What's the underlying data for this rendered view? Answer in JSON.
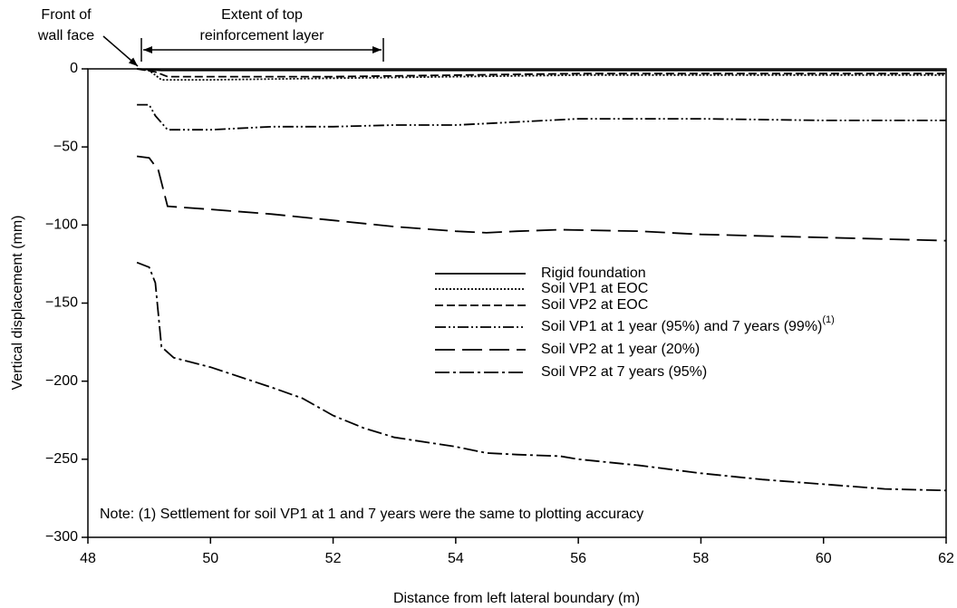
{
  "chart_data": {
    "type": "line",
    "xlabel": "Distance from left lateral boundary (m)",
    "ylabel": "Vertical displacement (mm)",
    "xlim": [
      48,
      62
    ],
    "xticks": [
      48,
      50,
      52,
      54,
      56,
      58,
      60,
      62
    ],
    "ylim": [
      -300,
      0
    ],
    "yticks": [
      {
        "value": -300,
        "label": "−300"
      },
      {
        "value": -250,
        "label": "−250"
      },
      {
        "value": -200,
        "label": "−200"
      },
      {
        "value": -150,
        "label": "−150"
      },
      {
        "value": -100,
        "label": "−100"
      },
      {
        "value": -50,
        "label": "−50"
      },
      0
    ],
    "annotations": [
      "Front of",
      "wall face",
      "Extent of top",
      "reinforcement layer",
      "Note: (1) Settlement for soil VP1 at 1 and 7 years were the same to plotting accuracy"
    ],
    "series": [
      {
        "name": "Rigid foundation",
        "color": "#000000",
        "dash": "none",
        "x": [
          48.8,
          49.2,
          62
        ],
        "values": [
          0,
          -1,
          -1
        ]
      },
      {
        "name": "Soil VP1 at EOC",
        "color": "#000000",
        "dash": "2,2",
        "x": [
          48.8,
          49.0,
          49.2,
          50,
          54,
          56,
          62
        ],
        "values": [
          0,
          -1,
          -7,
          -7,
          -5,
          -4,
          -4
        ]
      },
      {
        "name": "Soil VP2 at EOC",
        "color": "#000000",
        "dash": "9,4",
        "x": [
          48.8,
          49.1,
          49.3,
          52,
          56,
          62
        ],
        "values": [
          0,
          -2,
          -5,
          -5,
          -3,
          -3
        ]
      },
      {
        "name": "Soil VP1 at 1 year (95%) and 7 years (99%)",
        "superscript": "(1)",
        "color": "#000000",
        "dash": "12,3,2,3,2,3",
        "x": [
          48.8,
          49.0,
          49.1,
          49.3,
          50,
          51,
          52,
          53,
          54,
          55,
          56,
          57,
          58,
          60,
          62
        ],
        "values": [
          -23,
          -23,
          -30,
          -39,
          -39,
          -37,
          -37,
          -36,
          -36,
          -34,
          -32,
          -32,
          -32,
          -33,
          -33
        ]
      },
      {
        "name": "Soil VP2 at 1 year (20%)",
        "color": "#000000",
        "dash": "22,8",
        "x": [
          48.8,
          49.0,
          49.15,
          49.3,
          50,
          51,
          52,
          53,
          54,
          54.5,
          55,
          55.7,
          57,
          58,
          60,
          62
        ],
        "values": [
          -56,
          -57,
          -65,
          -88,
          -90,
          -93,
          -97,
          -101,
          -104,
          -105,
          -104,
          -103,
          -104,
          -106,
          -108,
          -110
        ]
      },
      {
        "name": "Soil VP2 at 7 years (95%)",
        "color": "#000000",
        "dash": "16,4,3,4",
        "x": [
          48.8,
          49.0,
          49.1,
          49.2,
          49.4,
          50,
          51,
          51.5,
          52,
          52.5,
          53,
          54,
          54.5,
          55,
          55.7,
          56,
          57,
          58,
          59,
          60,
          61,
          62
        ],
        "values": [
          -124,
          -127,
          -137,
          -178,
          -185,
          -191,
          -204,
          -211,
          -222,
          -230,
          -236,
          -242,
          -246,
          -247,
          -248,
          -250,
          -254,
          -259,
          -263,
          -266,
          -269,
          -270
        ]
      }
    ]
  }
}
